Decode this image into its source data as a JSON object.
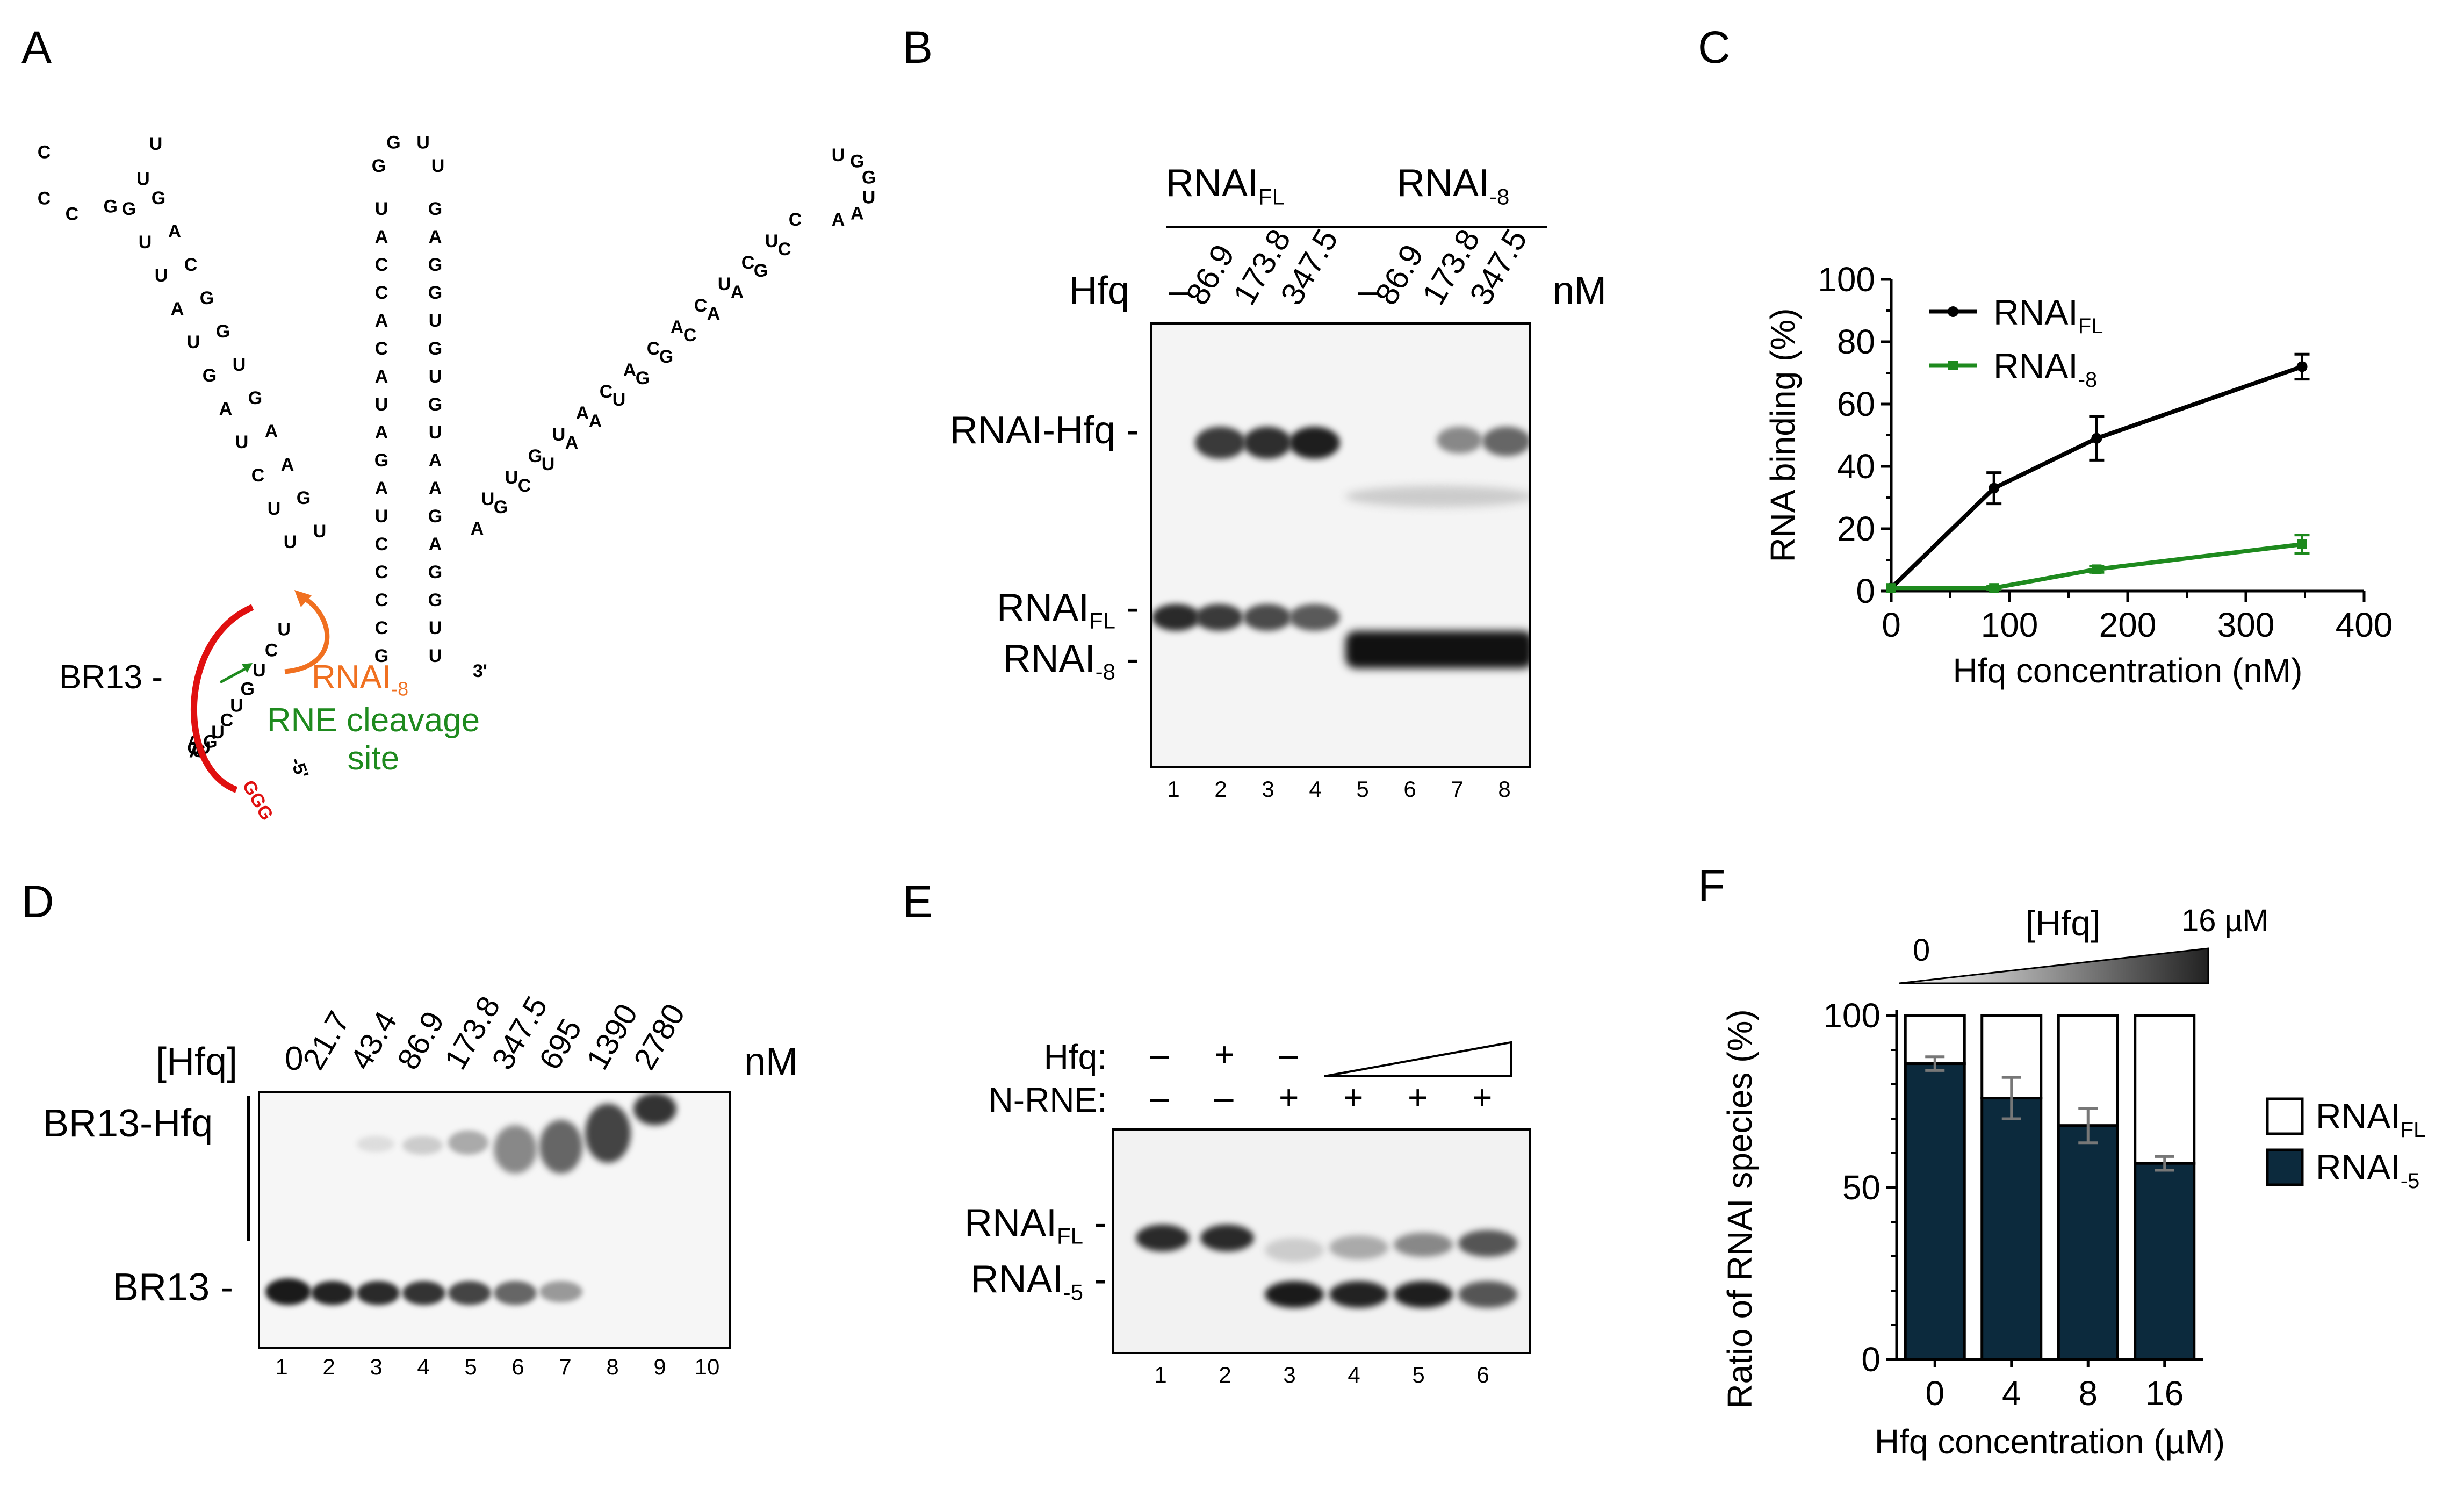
{
  "panels": [
    "A",
    "B",
    "C",
    "D",
    "E",
    "F"
  ],
  "panel_a": {
    "br13_label": "BR13 -",
    "rnai8_main": "RNAI",
    "rnai8_sub": "-8",
    "rne_line1": "RNE cleavage",
    "rne_line2": "site",
    "ggg": "GGG",
    "five_prime": "-5'",
    "three_prime": "3'",
    "stem1_bases": [
      "C",
      "U",
      "G",
      "A",
      "U",
      "U",
      "G",
      "C",
      "C",
      "G",
      "G",
      "U",
      "A",
      "U",
      "C",
      "A",
      "G",
      "U",
      "G",
      "G",
      "U",
      "A",
      "G",
      "U",
      "A",
      "C",
      "A",
      "U",
      "G",
      "U",
      "U"
    ],
    "stem2_bases": [
      "G",
      "G",
      "U",
      "U",
      "U",
      "G",
      "A",
      "A",
      "C",
      "G",
      "C",
      "G",
      "A",
      "U",
      "C",
      "G",
      "A",
      "U",
      "U",
      "G",
      "A",
      "U",
      "G",
      "A",
      "A",
      "A",
      "U",
      "G",
      "C",
      "A",
      "C",
      "G",
      "C",
      "G",
      "C",
      "U",
      "G",
      "U"
    ],
    "stem3_bases": [
      "U",
      "G",
      "G",
      "U",
      "A",
      "A",
      "C",
      "C",
      "U",
      "G",
      "C",
      "A",
      "U",
      "A",
      "C",
      "C",
      "A",
      "G",
      "C",
      "G",
      "A",
      "U",
      "C",
      "A",
      "A",
      "A",
      "U",
      "U",
      "G",
      "C",
      "U",
      "G",
      "U",
      "A"
    ],
    "tail_bases": [
      "U",
      "C",
      "U",
      "G",
      "U",
      "C",
      "U",
      "G",
      "U",
      "G",
      "A",
      "C",
      "A"
    ]
  },
  "panel_b": {
    "group1_main": "RNAI",
    "group1_sub": "FL",
    "group2_main": "RNAI",
    "group2_sub": "-8",
    "row_label": "Hfq",
    "unit": "nM",
    "concentrations": [
      "–",
      "86.9",
      "173.8",
      "347.5",
      "–",
      "86.9",
      "173.8",
      "347.5"
    ],
    "band_complex": "RNAI-Hfq -",
    "band_fl_main": "RNAI",
    "band_fl_sub": "FL",
    "band_fl_dash": " -",
    "band_8_main": "RNAI",
    "band_8_sub": "-8",
    "band_8_dash": " -",
    "lanes": [
      "1",
      "2",
      "3",
      "4",
      "5",
      "6",
      "7",
      "8"
    ]
  },
  "panel_c": {
    "chart_data": {
      "type": "line",
      "xlabel": "Hfq concentration (nM)",
      "ylabel": "RNA binding (%)",
      "xlim": [
        0,
        400
      ],
      "ylim": [
        0,
        100
      ],
      "xticks": [
        0,
        100,
        200,
        300,
        400
      ],
      "yticks": [
        0,
        20,
        40,
        60,
        80,
        100
      ],
      "legend_position": "top-left",
      "series": [
        {
          "name": "RNAI",
          "name_sub": "FL",
          "color": "#000000",
          "x": [
            0,
            86.9,
            173.8,
            347.5
          ],
          "y": [
            1,
            33,
            49,
            72
          ],
          "err": [
            0,
            5,
            7,
            4
          ]
        },
        {
          "name": "RNAI",
          "name_sub": "-8",
          "color": "#1e8a1e",
          "x": [
            0,
            86.9,
            173.8,
            347.5
          ],
          "y": [
            1,
            1,
            7,
            15
          ],
          "err": [
            0,
            0.5,
            1,
            3
          ]
        }
      ]
    }
  },
  "panel_d": {
    "row_label": "[Hfq]",
    "unit": "nM",
    "concentrations": [
      "0",
      "21.7",
      "43.4",
      "86.9",
      "173.8",
      "347.5",
      "695",
      "1390",
      "2780"
    ],
    "band_complex": "BR13-Hfq",
    "band_free": "BR13 -",
    "lanes": [
      "1",
      "2",
      "3",
      "4",
      "5",
      "6",
      "7",
      "8",
      "9",
      "10"
    ]
  },
  "panel_e": {
    "hfq_label": "Hfq:",
    "nrne_label": "N-RNE:",
    "hfq_signs": [
      "–",
      "+",
      "–"
    ],
    "nrne_signs": [
      "–",
      "–",
      "+",
      "+",
      "+",
      "+"
    ],
    "band_fl_main": "RNAI",
    "band_fl_sub": "FL",
    "band_fl_dash": " -",
    "band_5_main": "RNAI",
    "band_5_sub": "-5",
    "band_5_dash": " -",
    "lanes": [
      "1",
      "2",
      "3",
      "4",
      "5",
      "6"
    ]
  },
  "panel_f": {
    "gradient_label": "[Hfq]",
    "gradient_start": "0",
    "gradient_end": "16 µM",
    "legend_fl_main": "RNAI",
    "legend_fl_sub": "FL",
    "legend_5_main": "RNAI",
    "legend_5_sub": "-5",
    "chart_data": {
      "type": "bar",
      "stacked": true,
      "categories": [
        "0",
        "4",
        "8",
        "16"
      ],
      "xlabel": "Hfq concentration (µM)",
      "ylabel": "Ratio of RNAI species (%)",
      "ylim": [
        0,
        100
      ],
      "yticks": [
        0,
        50,
        100
      ],
      "series": [
        {
          "name": "RNAI-5",
          "color": "#0c2a3d",
          "values": [
            86,
            76,
            68,
            57
          ],
          "err": [
            2,
            6,
            5,
            2
          ]
        },
        {
          "name": "RNAIFL",
          "color": "#ffffff",
          "values": [
            14,
            24,
            32,
            43
          ]
        }
      ]
    }
  }
}
